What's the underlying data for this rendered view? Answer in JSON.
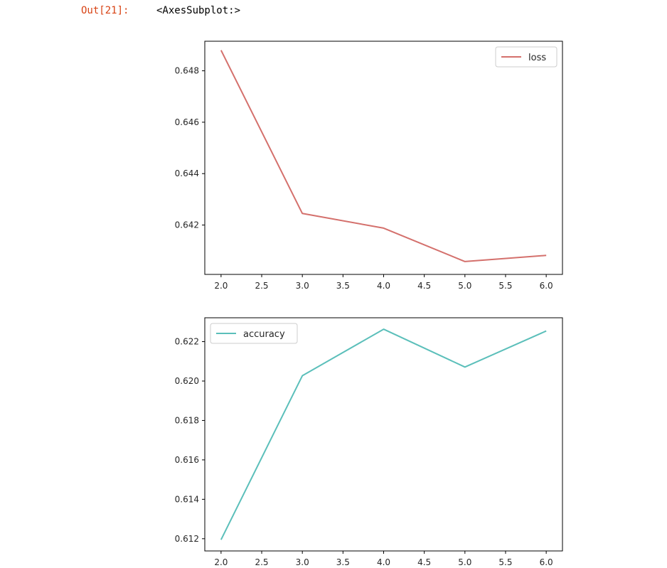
{
  "cell": {
    "prompt": "Out[21]:",
    "output_text": "<AxesSubplot:>"
  },
  "chart_data": [
    {
      "type": "line",
      "x": [
        2.0,
        3.0,
        4.0,
        5.0,
        6.0
      ],
      "series": [
        {
          "name": "loss",
          "values": [
            0.6488,
            0.64245,
            0.64188,
            0.64058,
            0.64082
          ],
          "color": "#d4706c"
        }
      ],
      "xlim": [
        1.8,
        6.2
      ],
      "ylim": [
        0.64008,
        0.64915
      ],
      "xticks": [
        2.0,
        2.5,
        3.0,
        3.5,
        4.0,
        4.5,
        5.0,
        5.5,
        6.0
      ],
      "xtick_labels": [
        "2.0",
        "2.5",
        "3.0",
        "3.5",
        "4.0",
        "4.5",
        "5.0",
        "5.5",
        "6.0"
      ],
      "yticks": [
        0.642,
        0.644,
        0.646,
        0.648
      ],
      "ytick_labels": [
        "0.642",
        "0.644",
        "0.646",
        "0.648"
      ],
      "legend_position": "upper right",
      "grid": false
    },
    {
      "type": "line",
      "x": [
        2.0,
        3.0,
        4.0,
        5.0,
        6.0
      ],
      "series": [
        {
          "name": "accuracy",
          "values": [
            0.61195,
            0.62027,
            0.62263,
            0.62071,
            0.62254
          ],
          "color": "#5bbfba"
        }
      ],
      "xlim": [
        1.8,
        6.2
      ],
      "ylim": [
        0.61138,
        0.62321
      ],
      "xticks": [
        2.0,
        2.5,
        3.0,
        3.5,
        4.0,
        4.5,
        5.0,
        5.5,
        6.0
      ],
      "xtick_labels": [
        "2.0",
        "2.5",
        "3.0",
        "3.5",
        "4.0",
        "4.5",
        "5.0",
        "5.5",
        "6.0"
      ],
      "yticks": [
        0.612,
        0.614,
        0.616,
        0.618,
        0.62,
        0.622
      ],
      "ytick_labels": [
        "0.612",
        "0.614",
        "0.616",
        "0.618",
        "0.620",
        "0.622"
      ],
      "legend_position": "upper left",
      "grid": false
    }
  ]
}
